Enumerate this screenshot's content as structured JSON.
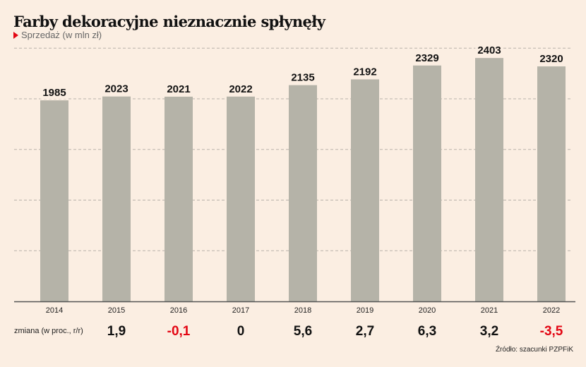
{
  "chart_data": {
    "type": "bar",
    "title": "Farby dekoracyjne nieznacznie spłynęły",
    "subtitle": "Sprzedaż (w mln zł)",
    "categories": [
      "2014",
      "2015",
      "2016",
      "2017",
      "2018",
      "2019",
      "2020",
      "2021",
      "2022"
    ],
    "values": [
      1985,
      2023,
      2021,
      2022,
      2135,
      2192,
      2329,
      2403,
      2320
    ],
    "ylim": [
      0,
      2500
    ],
    "gridlines": [
      500,
      1000,
      1500,
      2000,
      2500
    ],
    "change_label": "zmiana (w proc., r/r)",
    "changes": [
      null,
      "1,9",
      "-0,1",
      "0",
      "5,6",
      "2,7",
      "6,3",
      "3,2",
      "-3,5"
    ],
    "source": "Źródło: szacunki PZPFiK",
    "colors": {
      "bar": "#b5b3a8",
      "negative": "#e30613",
      "positive": "#111111",
      "background": "#fbeee2"
    }
  }
}
